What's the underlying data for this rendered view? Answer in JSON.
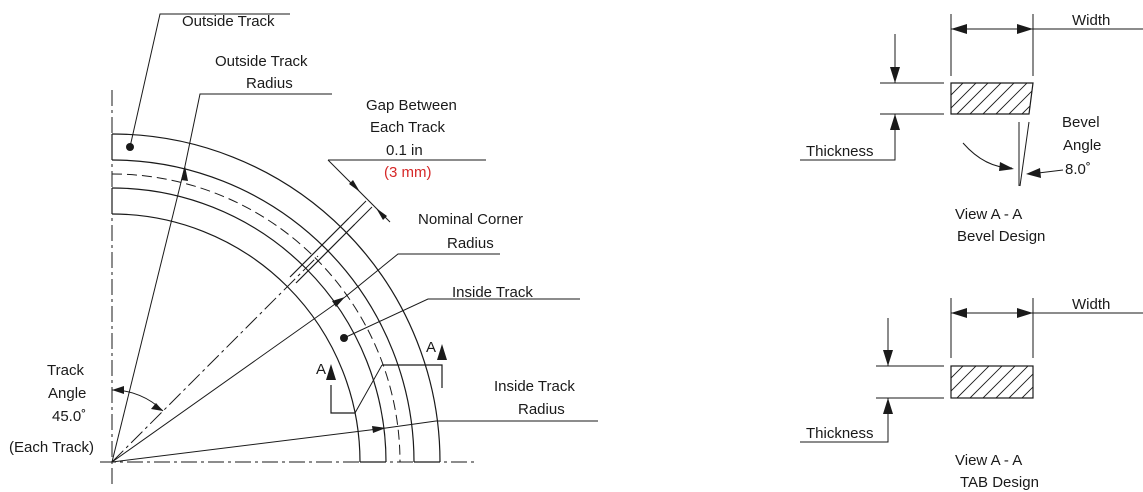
{
  "labels": {
    "outside_track": "Outside Track",
    "outside_track_radius_1": "Outside Track",
    "outside_track_radius_2": "Radius",
    "gap_1": "Gap Between",
    "gap_2": "Each Track",
    "gap_in": "0.1 in",
    "gap_mm": "(3 mm)",
    "nominal_1": "Nominal Corner",
    "nominal_2": "Radius",
    "inside_track": "Inside Track",
    "inside_track_radius_1": "Inside Track",
    "inside_track_radius_2": "Radius",
    "track_angle_1": "Track",
    "track_angle_2": "Angle",
    "track_angle_3": "45.0˚",
    "track_angle_4": "(Each Track)",
    "section_a_left": "A",
    "section_a_right": "A"
  },
  "bevel": {
    "width": "Width",
    "thickness": "Thickness",
    "bevel_1": "Bevel",
    "bevel_2": "Angle",
    "bevel_3": "8.0˚",
    "view_1": "View A - A",
    "view_2": "Bevel Design"
  },
  "tab": {
    "width": "Width",
    "thickness": "Thickness",
    "view_1": "View A - A",
    "view_2": "TAB Design"
  },
  "colors": {
    "line": "#1a1a1a",
    "accent": "#d62828"
  }
}
